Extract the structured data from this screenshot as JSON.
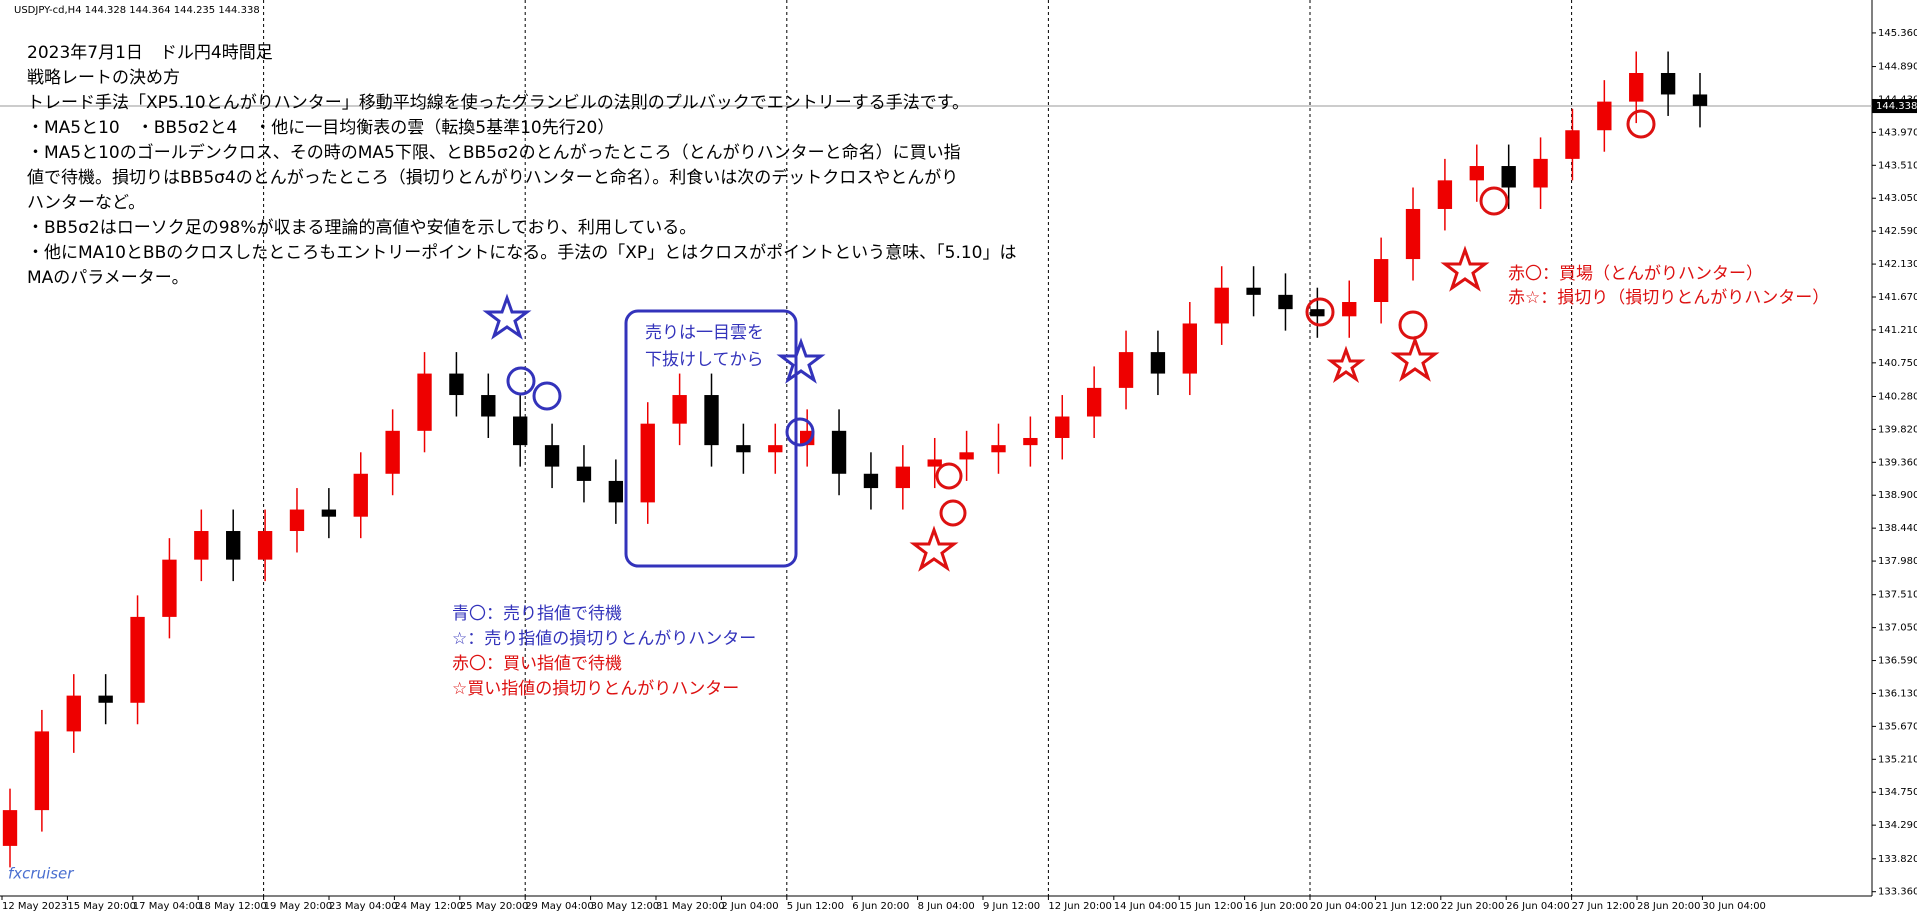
{
  "header": {
    "symbol": "USDJPY-cd,H4 144.328 144.364 144.235 144.338"
  },
  "notes": {
    "lines": [
      "2023年7月1日　ドル円4時間足",
      "戦略レートの決め方",
      "トレード手法「XP5.10とんがりハンター」移動平均線を使ったグランビルの法則のプルバックでエントリーする手法です。",
      "・MA5と10　・BB5σ2と4　・他に一目均衡表の雲（転換5基準10先行20）",
      "・MA5と10のゴールデンクロス、その時のMA5下限、とBB5σ2のとんがったところ（とんがりハンターと命名）に買い指",
      "値で待機。損切りはBB5σ4のとんがったところ（損切りとんがりハンターと命名）。利食いは次のデットクロスやとんがり",
      "ハンターなど。",
      "・BB5σ2はローソク足の98%が収まる理論的高値や安値を示しており、利用している。",
      "・他にMA10とBBのクロスしたところもエントリーポイントになる。手法の「XP」とはクロスがポイントという意味、「5.10」は",
      "MAのパラメーター。"
    ],
    "box": [
      "売りは一目雲を",
      "下抜けしてから"
    ],
    "legend_blue": [
      "青〇：売り指値で待機",
      "☆：売り指値の損切りとんがりハンター"
    ],
    "legend_red": [
      "赤〇：買い指値で待機",
      "☆買い指値の損切りとんがりハンター"
    ],
    "legend_right": [
      "赤〇：買場（とんがりハンター）",
      "赤☆：損切り（損切りとんがりハンター）"
    ],
    "watermark": "fxcruiser"
  },
  "chart_data": {
    "type": "candlestick",
    "current_price": {
      "value": 144.338,
      "label": "144.338"
    },
    "x_labels": [
      "12 May 2023",
      "15 May 20:00",
      "17 May 04:00",
      "18 May 12:00",
      "19 May 20:00",
      "23 May 04:00",
      "24 May 12:00",
      "25 May 20:00",
      "29 May 04:00",
      "30 May 12:00",
      "31 May 20:00",
      "2 Jun 04:00",
      "5 Jun 12:00",
      "6 Jun 20:00",
      "8 Jun 04:00",
      "9 Jun 12:00",
      "12 Jun 20:00",
      "14 Jun 04:00",
      "15 Jun 12:00",
      "16 Jun 20:00",
      "20 Jun 04:00",
      "21 Jun 12:00",
      "22 Jun 20:00",
      "26 Jun 04:00",
      "27 Jun 12:00",
      "28 Jun 20:00",
      "30 Jun 04:00"
    ],
    "open": [
      134.0,
      134.5,
      135.6,
      136.1,
      136.0,
      137.2,
      138.0,
      138.4,
      138.0,
      138.4,
      138.7,
      138.6,
      139.2,
      139.8,
      140.6,
      140.3,
      140.0,
      139.6,
      139.3,
      139.1,
      138.8,
      139.9,
      140.3,
      139.6,
      139.5,
      139.6,
      139.8,
      139.2,
      139.0,
      139.3,
      139.4,
      139.5,
      139.6,
      139.7,
      140.0,
      140.4,
      140.9,
      140.6,
      141.3,
      141.8,
      141.7,
      141.5,
      141.4,
      141.6,
      142.2,
      142.9,
      143.3,
      143.5,
      143.2,
      143.6,
      144.0,
      144.4,
      144.8,
      144.5
    ],
    "high": [
      134.8,
      135.9,
      136.4,
      136.4,
      137.5,
      138.3,
      138.7,
      138.7,
      138.7,
      139.0,
      139.0,
      139.5,
      140.1,
      140.9,
      140.9,
      140.6,
      140.3,
      139.9,
      139.6,
      139.4,
      140.2,
      140.6,
      140.6,
      139.9,
      139.9,
      140.1,
      140.1,
      139.5,
      139.6,
      139.7,
      139.8,
      139.9,
      140.0,
      140.3,
      140.7,
      141.2,
      141.2,
      141.6,
      142.1,
      142.1,
      142.0,
      141.8,
      141.9,
      142.5,
      143.2,
      143.6,
      143.8,
      143.8,
      143.9,
      144.3,
      144.7,
      145.1,
      145.1,
      144.8
    ],
    "low": [
      133.7,
      134.2,
      135.3,
      135.7,
      135.7,
      136.9,
      137.7,
      137.7,
      137.7,
      138.1,
      138.3,
      138.3,
      138.9,
      139.5,
      140.0,
      139.7,
      139.3,
      139.0,
      138.8,
      138.5,
      138.5,
      139.6,
      139.3,
      139.2,
      139.2,
      139.3,
      138.9,
      138.7,
      138.7,
      139.0,
      139.1,
      139.2,
      139.3,
      139.4,
      139.7,
      140.1,
      140.3,
      140.3,
      141.0,
      141.4,
      141.2,
      141.1,
      141.1,
      141.3,
      141.9,
      142.6,
      143.0,
      142.9,
      142.9,
      143.3,
      143.7,
      144.1,
      144.2,
      144.04
    ],
    "close": [
      134.5,
      135.6,
      136.1,
      136.0,
      137.2,
      138.0,
      138.4,
      138.0,
      138.4,
      138.7,
      138.6,
      139.2,
      139.8,
      140.6,
      140.3,
      140.0,
      139.6,
      139.3,
      139.1,
      138.8,
      139.9,
      140.3,
      139.6,
      139.5,
      139.6,
      139.8,
      139.2,
      139.0,
      139.3,
      139.4,
      139.5,
      139.6,
      139.7,
      140.0,
      140.4,
      140.9,
      140.6,
      141.3,
      141.8,
      141.7,
      141.5,
      141.4,
      141.6,
      142.2,
      142.9,
      143.3,
      143.5,
      143.2,
      143.6,
      144.0,
      144.4,
      144.8,
      144.5,
      144.34
    ],
    "up_color": "#ee0000",
    "down_color": "#000000",
    "ylim": [
      133.3,
      145.82
    ],
    "yticks": [
      {
        "value": 145.36,
        "label": "145.360"
      },
      {
        "value": 144.89,
        "label": "144.890"
      },
      {
        "value": 144.43,
        "label": "144.430"
      },
      {
        "value": 143.97,
        "label": "143.970"
      },
      {
        "value": 143.51,
        "label": "143.510"
      },
      {
        "value": 143.05,
        "label": "143.050"
      },
      {
        "value": 142.59,
        "label": "142.590"
      },
      {
        "value": 142.13,
        "label": "142.130"
      },
      {
        "value": 141.67,
        "label": "141.670"
      },
      {
        "value": 141.21,
        "label": "141.210"
      },
      {
        "value": 140.75,
        "label": "140.750"
      },
      {
        "value": 140.28,
        "label": "140.280"
      },
      {
        "value": 139.82,
        "label": "139.820"
      },
      {
        "value": 139.36,
        "label": "139.360"
      },
      {
        "value": 138.9,
        "label": "138.900"
      },
      {
        "value": 138.44,
        "label": "138.440"
      },
      {
        "value": 137.98,
        "label": "137.980"
      },
      {
        "value": 137.51,
        "label": "137.510"
      },
      {
        "value": 137.05,
        "label": "137.050"
      },
      {
        "value": 136.59,
        "label": "136.590"
      },
      {
        "value": 136.13,
        "label": "136.130"
      },
      {
        "value": 135.67,
        "label": "135.670"
      },
      {
        "value": 135.21,
        "label": "135.210"
      },
      {
        "value": 134.75,
        "label": "134.750"
      },
      {
        "value": 134.29,
        "label": "134.290"
      },
      {
        "value": 133.82,
        "label": "133.820"
      },
      {
        "value": 133.36,
        "label": "133.360"
      }
    ]
  }
}
